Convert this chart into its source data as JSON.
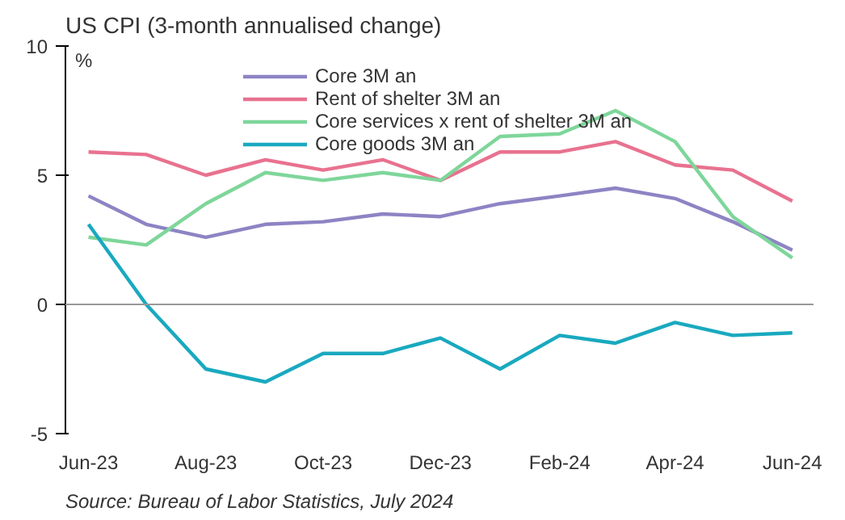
{
  "chart_data": {
    "type": "line",
    "title": "US CPI (3-month annualised change)",
    "ylabel": "%",
    "x": [
      "2023-06",
      "2023-07",
      "2023-08",
      "2023-09",
      "2023-10",
      "2023-11",
      "2023-12",
      "2024-01",
      "2024-02",
      "2024-03",
      "2024-04",
      "2024-05",
      "2024-06"
    ],
    "series": [
      {
        "name": "Core 3M an",
        "color": "#8d84c4",
        "values": [
          4.2,
          3.1,
          2.6,
          3.1,
          3.2,
          3.5,
          3.4,
          3.9,
          4.2,
          4.5,
          4.1,
          3.2,
          2.1
        ]
      },
      {
        "name": "Rent of shelter 3M an",
        "color": "#e8728f",
        "values": [
          5.9,
          5.8,
          5.0,
          5.6,
          5.2,
          5.6,
          4.8,
          5.9,
          5.9,
          6.3,
          5.4,
          5.2,
          4.0
        ]
      },
      {
        "name": "Core services x rent of shelter 3M an",
        "color": "#7ed69a",
        "values": [
          2.6,
          2.3,
          3.9,
          5.1,
          4.8,
          5.1,
          4.8,
          6.5,
          6.6,
          7.5,
          6.3,
          3.4,
          1.8
        ]
      },
      {
        "name": "Core goods 3M an",
        "color": "#19a9bf",
        "values": [
          3.1,
          0,
          -2.5,
          -3.0,
          -1.9,
          -1.9,
          -1.3,
          -2.5,
          -1.2,
          -1.5,
          -0.7,
          -1.2,
          -1.1
        ]
      }
    ],
    "xlim": [
      "2023-05-20",
      "2024-06-12"
    ],
    "xticks": [
      {
        "value": "2023-06",
        "label": "Jun-23"
      },
      {
        "value": "2023-08",
        "label": "Aug-23"
      },
      {
        "value": "2023-10",
        "label": "Oct-23"
      },
      {
        "value": "2023-12",
        "label": "Dec-23"
      },
      {
        "value": "2024-02",
        "label": "Feb-24"
      },
      {
        "value": "2024-04",
        "label": "Apr-24"
      },
      {
        "value": "2024-06",
        "label": "Jun-24"
      }
    ],
    "ylim": [
      -5,
      10
    ],
    "yticks": [
      -5,
      0,
      5,
      10
    ],
    "ref_lines": [
      {
        "axis": "y",
        "value": 0,
        "color": "#999999"
      }
    ],
    "grid": false,
    "legend": "top right",
    "marker": "none",
    "line_style": "solid",
    "annotations": [
      "Source: Bureau of Labor Statistics, July 2024"
    ]
  }
}
